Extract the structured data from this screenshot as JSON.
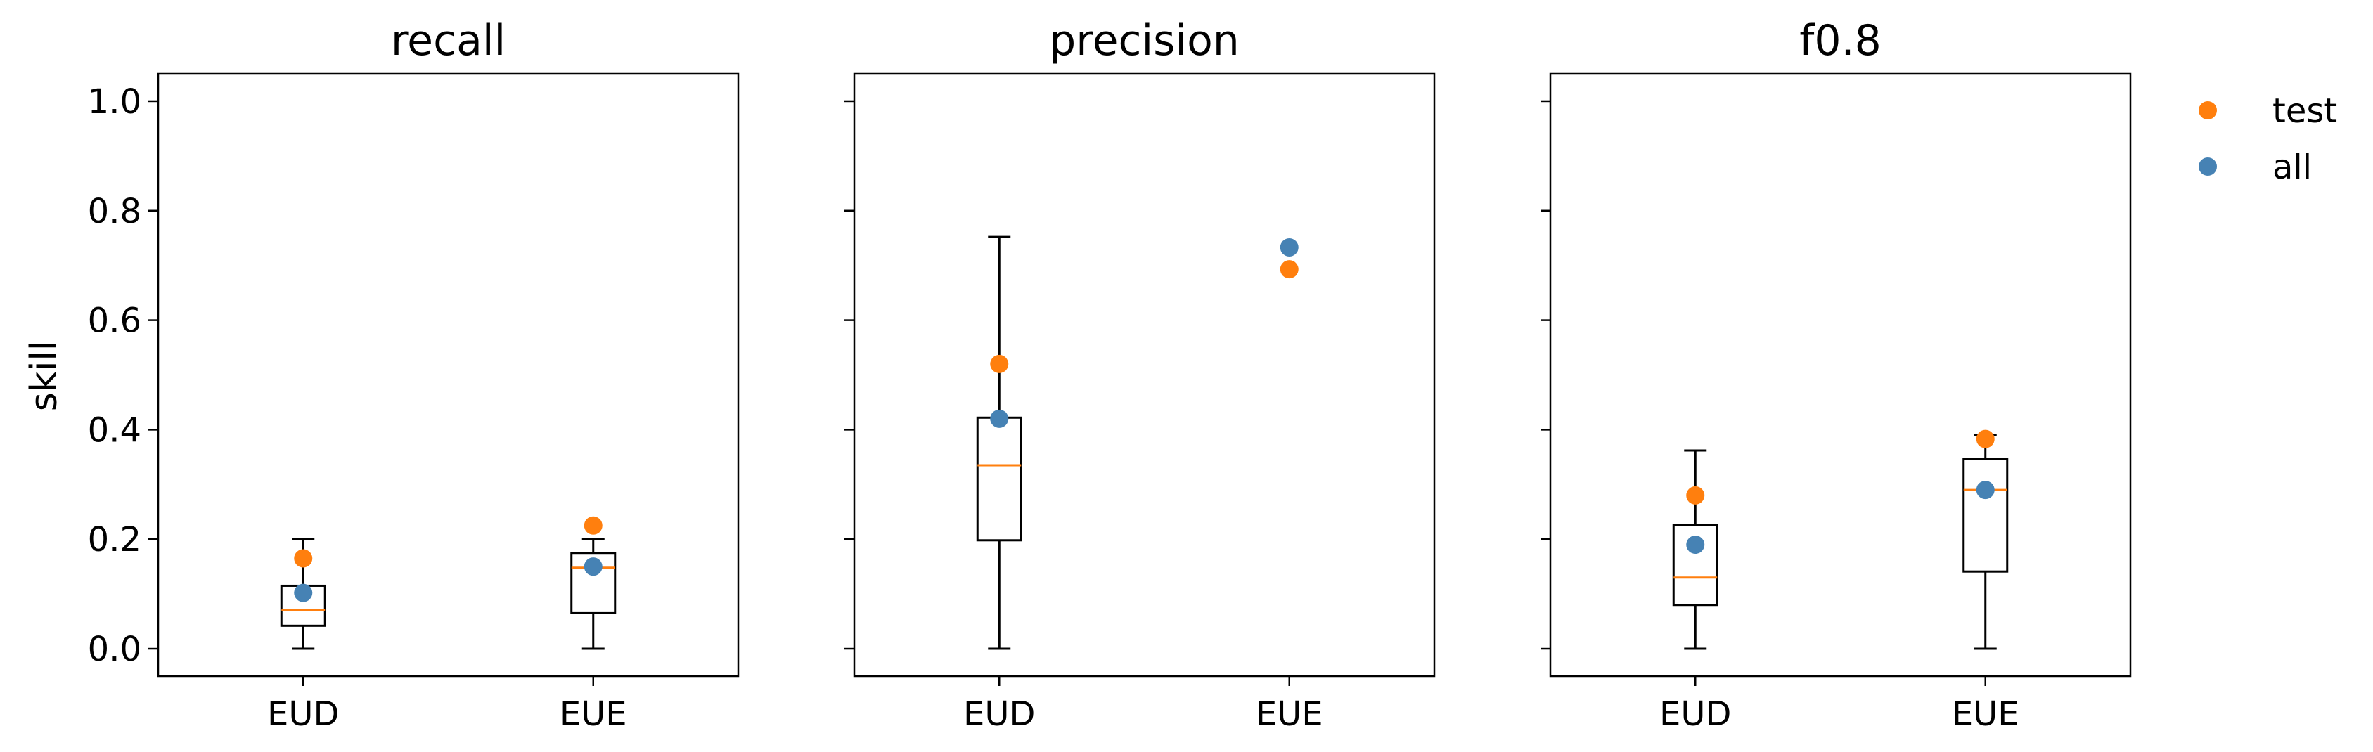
{
  "chart_data": {
    "type": "box",
    "ylabel": "skill",
    "ylim": [
      -0.05,
      1.05
    ],
    "yticks": [
      0.0,
      0.2,
      0.4,
      0.6,
      0.8,
      1.0
    ],
    "ytick_labels": [
      "0.0",
      "0.2",
      "0.4",
      "0.6",
      "0.8",
      "1.0"
    ],
    "categories": [
      "EUD",
      "EUE"
    ],
    "legend": {
      "position": "top-right-outside",
      "entries": [
        {
          "name": "test",
          "color": "#ff7f0e"
        },
        {
          "name": "all",
          "color": "#4682b4"
        }
      ]
    },
    "colors": {
      "box": "#000000",
      "median": "#ff7f0e",
      "test": "#ff7f0e",
      "all": "#4682b4"
    },
    "panels": [
      {
        "title": "recall",
        "boxes": [
          {
            "whislo": 0.0,
            "q1": 0.042,
            "med": 0.07,
            "q3": 0.115,
            "whishi": 0.2
          },
          {
            "whislo": 0.0,
            "q1": 0.065,
            "med": 0.148,
            "q3": 0.175,
            "whishi": 0.2
          }
        ],
        "test": [
          0.165,
          0.225
        ],
        "all": [
          0.102,
          0.15
        ]
      },
      {
        "title": "precision",
        "boxes": [
          {
            "whislo": 0.0,
            "q1": 0.198,
            "med": 0.335,
            "q3": 0.422,
            "whishi": 0.752
          },
          null
        ],
        "test": [
          0.52,
          0.693
        ],
        "all": [
          0.42,
          0.733
        ]
      },
      {
        "title": "f0.8",
        "boxes": [
          {
            "whislo": 0.0,
            "q1": 0.08,
            "med": 0.13,
            "q3": 0.226,
            "whishi": 0.362
          },
          {
            "whislo": 0.0,
            "q1": 0.141,
            "med": 0.29,
            "q3": 0.347,
            "whishi": 0.39
          }
        ],
        "test": [
          0.28,
          0.383
        ],
        "all": [
          0.19,
          0.29
        ]
      }
    ]
  }
}
